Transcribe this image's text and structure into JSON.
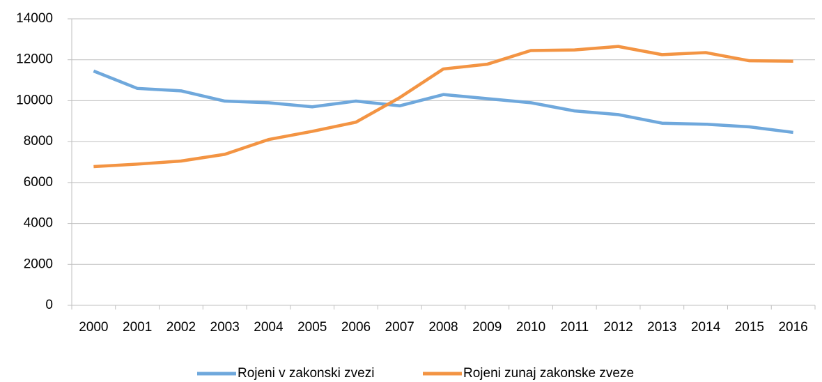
{
  "chart_data": {
    "type": "line",
    "categories": [
      "2000",
      "2001",
      "2002",
      "2003",
      "2004",
      "2005",
      "2006",
      "2007",
      "2008",
      "2009",
      "2010",
      "2011",
      "2012",
      "2013",
      "2014",
      "2015",
      "2016"
    ],
    "series": [
      {
        "name": "Rojeni v zakonski zvezi",
        "color": "#6fa8dc",
        "values": [
          11450,
          10600,
          10480,
          9980,
          9900,
          9700,
          9980,
          9750,
          10300,
          10100,
          9900,
          9500,
          9320,
          8900,
          8850,
          8720,
          8450
        ]
      },
      {
        "name": "Rojeni zunaj zakonske zveze",
        "color": "#f39443",
        "values": [
          6780,
          6900,
          7050,
          7380,
          8100,
          8500,
          8950,
          10150,
          11550,
          11780,
          12450,
          12480,
          12650,
          12250,
          12350,
          11950,
          11930
        ]
      }
    ],
    "ylim": [
      0,
      14000
    ],
    "yticks": [
      0,
      2000,
      4000,
      6000,
      8000,
      10000,
      12000,
      14000
    ],
    "grid": true,
    "legend": "bottom"
  }
}
